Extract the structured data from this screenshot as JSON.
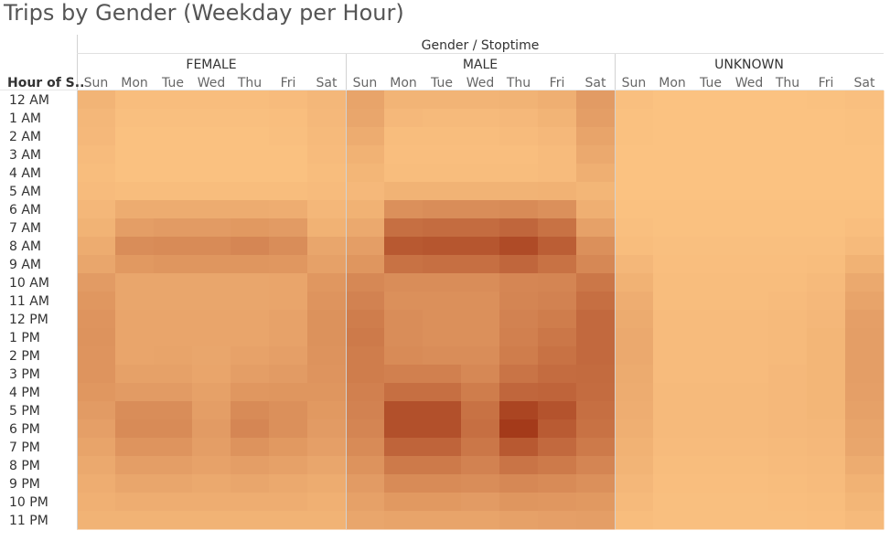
{
  "chart_data": {
    "type": "heatmap",
    "title": "Trips by Gender (Weekday per Hour)",
    "column_header": "Gender / Stoptime",
    "row_header": "Hour of S..",
    "groups": [
      "FEMALE",
      "MALE",
      "UNKNOWN"
    ],
    "days": [
      "Sun",
      "Mon",
      "Tue",
      "Wed",
      "Thu",
      "Fri",
      "Sat"
    ],
    "hours": [
      "12 AM",
      "1 AM",
      "2 AM",
      "3 AM",
      "4 AM",
      "5 AM",
      "6 AM",
      "7 AM",
      "8 AM",
      "9 AM",
      "10 AM",
      "11 AM",
      "12 PM",
      "1 PM",
      "2 PM",
      "3 PM",
      "4 PM",
      "5 PM",
      "6 PM",
      "7 PM",
      "8 PM",
      "9 PM",
      "10 PM",
      "11 PM"
    ],
    "color_low": "#fdc583",
    "color_high": "#a43a1a",
    "values": {
      "FEMALE": [
        [
          0.12,
          0.06,
          0.06,
          0.06,
          0.06,
          0.07,
          0.1
        ],
        [
          0.1,
          0.04,
          0.04,
          0.04,
          0.04,
          0.05,
          0.09
        ],
        [
          0.09,
          0.03,
          0.03,
          0.03,
          0.03,
          0.04,
          0.08
        ],
        [
          0.07,
          0.03,
          0.03,
          0.03,
          0.03,
          0.03,
          0.07
        ],
        [
          0.06,
          0.03,
          0.03,
          0.03,
          0.03,
          0.03,
          0.06
        ],
        [
          0.07,
          0.06,
          0.06,
          0.06,
          0.06,
          0.06,
          0.07
        ],
        [
          0.1,
          0.18,
          0.18,
          0.18,
          0.18,
          0.17,
          0.1
        ],
        [
          0.13,
          0.28,
          0.3,
          0.3,
          0.32,
          0.3,
          0.14
        ],
        [
          0.18,
          0.4,
          0.42,
          0.42,
          0.45,
          0.4,
          0.22
        ],
        [
          0.22,
          0.32,
          0.34,
          0.34,
          0.34,
          0.33,
          0.26
        ],
        [
          0.3,
          0.22,
          0.22,
          0.22,
          0.22,
          0.23,
          0.33
        ],
        [
          0.33,
          0.22,
          0.22,
          0.22,
          0.22,
          0.23,
          0.35
        ],
        [
          0.35,
          0.23,
          0.23,
          0.23,
          0.23,
          0.25,
          0.37
        ],
        [
          0.36,
          0.23,
          0.23,
          0.23,
          0.23,
          0.25,
          0.37
        ],
        [
          0.35,
          0.23,
          0.24,
          0.22,
          0.25,
          0.27,
          0.36
        ],
        [
          0.35,
          0.26,
          0.26,
          0.23,
          0.28,
          0.3,
          0.35
        ],
        [
          0.33,
          0.3,
          0.3,
          0.26,
          0.33,
          0.34,
          0.34
        ],
        [
          0.3,
          0.4,
          0.4,
          0.28,
          0.42,
          0.38,
          0.32
        ],
        [
          0.27,
          0.42,
          0.42,
          0.3,
          0.45,
          0.38,
          0.3
        ],
        [
          0.24,
          0.35,
          0.35,
          0.28,
          0.36,
          0.32,
          0.27
        ],
        [
          0.2,
          0.28,
          0.28,
          0.25,
          0.28,
          0.26,
          0.22
        ],
        [
          0.17,
          0.22,
          0.22,
          0.2,
          0.22,
          0.2,
          0.18
        ],
        [
          0.15,
          0.17,
          0.17,
          0.17,
          0.17,
          0.17,
          0.15
        ],
        [
          0.13,
          0.13,
          0.13,
          0.13,
          0.13,
          0.13,
          0.13
        ]
      ],
      "MALE": [
        [
          0.24,
          0.12,
          0.12,
          0.12,
          0.13,
          0.16,
          0.3
        ],
        [
          0.22,
          0.09,
          0.08,
          0.08,
          0.09,
          0.12,
          0.28
        ],
        [
          0.18,
          0.06,
          0.06,
          0.06,
          0.07,
          0.09,
          0.24
        ],
        [
          0.14,
          0.05,
          0.05,
          0.05,
          0.05,
          0.07,
          0.2
        ],
        [
          0.11,
          0.06,
          0.06,
          0.06,
          0.06,
          0.07,
          0.16
        ],
        [
          0.09,
          0.13,
          0.13,
          0.13,
          0.13,
          0.14,
          0.11
        ],
        [
          0.14,
          0.38,
          0.4,
          0.4,
          0.42,
          0.38,
          0.16
        ],
        [
          0.2,
          0.62,
          0.64,
          0.64,
          0.68,
          0.6,
          0.26
        ],
        [
          0.28,
          0.78,
          0.8,
          0.8,
          0.88,
          0.74,
          0.38
        ],
        [
          0.34,
          0.6,
          0.62,
          0.62,
          0.68,
          0.6,
          0.44
        ],
        [
          0.44,
          0.4,
          0.4,
          0.4,
          0.45,
          0.46,
          0.56
        ],
        [
          0.48,
          0.38,
          0.38,
          0.38,
          0.46,
          0.48,
          0.62
        ],
        [
          0.52,
          0.4,
          0.38,
          0.38,
          0.48,
          0.52,
          0.66
        ],
        [
          0.54,
          0.4,
          0.38,
          0.38,
          0.5,
          0.56,
          0.66
        ],
        [
          0.52,
          0.42,
          0.4,
          0.4,
          0.52,
          0.6,
          0.66
        ],
        [
          0.52,
          0.5,
          0.5,
          0.44,
          0.58,
          0.64,
          0.65
        ],
        [
          0.5,
          0.62,
          0.62,
          0.52,
          0.68,
          0.7,
          0.64
        ],
        [
          0.48,
          0.84,
          0.84,
          0.6,
          0.92,
          0.82,
          0.62
        ],
        [
          0.46,
          0.84,
          0.84,
          0.62,
          1.0,
          0.76,
          0.6
        ],
        [
          0.42,
          0.7,
          0.7,
          0.56,
          0.78,
          0.66,
          0.54
        ],
        [
          0.36,
          0.54,
          0.54,
          0.48,
          0.58,
          0.54,
          0.46
        ],
        [
          0.3,
          0.42,
          0.42,
          0.4,
          0.44,
          0.42,
          0.38
        ],
        [
          0.26,
          0.32,
          0.32,
          0.3,
          0.34,
          0.33,
          0.32
        ],
        [
          0.22,
          0.24,
          0.24,
          0.24,
          0.26,
          0.27,
          0.28
        ]
      ],
      "UNKNOWN": [
        [
          0.04,
          0.02,
          0.02,
          0.02,
          0.02,
          0.03,
          0.04
        ],
        [
          0.03,
          0.02,
          0.02,
          0.02,
          0.02,
          0.02,
          0.03
        ],
        [
          0.03,
          0.02,
          0.02,
          0.02,
          0.02,
          0.02,
          0.03
        ],
        [
          0.02,
          0.02,
          0.02,
          0.02,
          0.02,
          0.02,
          0.02
        ],
        [
          0.02,
          0.02,
          0.02,
          0.02,
          0.02,
          0.02,
          0.02
        ],
        [
          0.02,
          0.02,
          0.02,
          0.02,
          0.02,
          0.02,
          0.02
        ],
        [
          0.03,
          0.03,
          0.03,
          0.03,
          0.03,
          0.03,
          0.03
        ],
        [
          0.04,
          0.03,
          0.03,
          0.03,
          0.03,
          0.03,
          0.05
        ],
        [
          0.06,
          0.04,
          0.04,
          0.04,
          0.04,
          0.04,
          0.08
        ],
        [
          0.1,
          0.05,
          0.05,
          0.05,
          0.05,
          0.06,
          0.14
        ],
        [
          0.14,
          0.06,
          0.06,
          0.06,
          0.06,
          0.08,
          0.2
        ],
        [
          0.17,
          0.06,
          0.06,
          0.06,
          0.07,
          0.09,
          0.24
        ],
        [
          0.19,
          0.07,
          0.07,
          0.07,
          0.08,
          0.1,
          0.27
        ],
        [
          0.2,
          0.07,
          0.07,
          0.07,
          0.08,
          0.11,
          0.28
        ],
        [
          0.2,
          0.07,
          0.07,
          0.07,
          0.08,
          0.11,
          0.28
        ],
        [
          0.19,
          0.07,
          0.07,
          0.07,
          0.09,
          0.11,
          0.28
        ],
        [
          0.18,
          0.08,
          0.08,
          0.08,
          0.09,
          0.11,
          0.27
        ],
        [
          0.17,
          0.08,
          0.08,
          0.08,
          0.09,
          0.11,
          0.26
        ],
        [
          0.16,
          0.08,
          0.08,
          0.08,
          0.09,
          0.1,
          0.24
        ],
        [
          0.14,
          0.07,
          0.07,
          0.07,
          0.08,
          0.09,
          0.22
        ],
        [
          0.12,
          0.06,
          0.06,
          0.06,
          0.07,
          0.08,
          0.18
        ],
        [
          0.1,
          0.05,
          0.05,
          0.05,
          0.06,
          0.07,
          0.14
        ],
        [
          0.08,
          0.04,
          0.04,
          0.04,
          0.05,
          0.06,
          0.11
        ],
        [
          0.06,
          0.04,
          0.04,
          0.04,
          0.04,
          0.05,
          0.08
        ]
      ]
    }
  }
}
